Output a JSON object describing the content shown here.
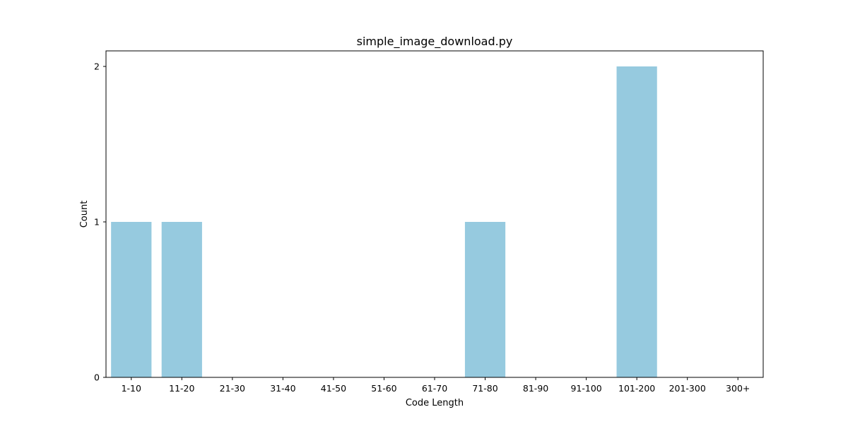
{
  "chart_data": {
    "type": "bar",
    "title": "simple_image_download.py",
    "xlabel": "Code Length",
    "ylabel": "Count",
    "categories": [
      "1-10",
      "11-20",
      "21-30",
      "31-40",
      "41-50",
      "51-60",
      "61-70",
      "71-80",
      "81-90",
      "91-100",
      "101-200",
      "201-300",
      "300+"
    ],
    "values": [
      1,
      1,
      0,
      0,
      0,
      0,
      0,
      1,
      0,
      0,
      2,
      0,
      0
    ],
    "ylim": [
      0,
      2.1
    ],
    "yticks": [
      0,
      1,
      2
    ],
    "grid": false,
    "bar_color": "#96cadf"
  }
}
